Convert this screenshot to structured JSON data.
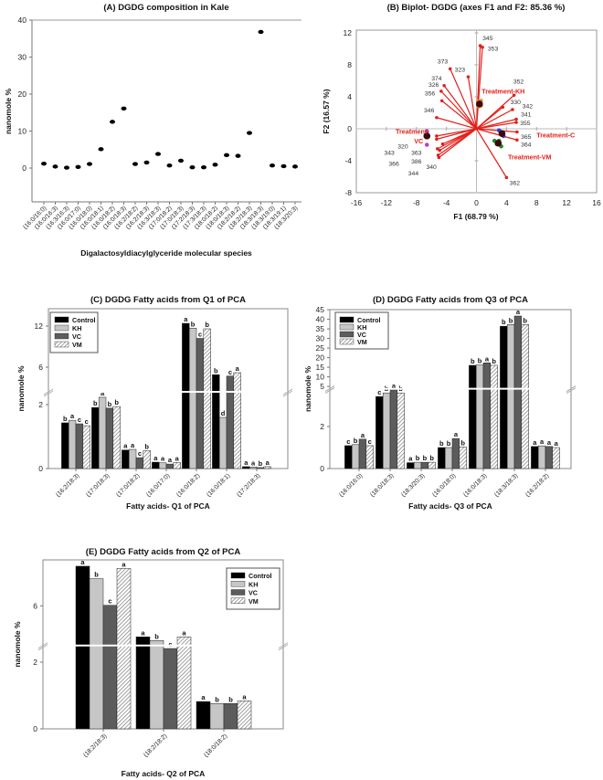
{
  "chart_data": [
    {
      "type": "scatter",
      "title": "(A) DGDG composition in Kale",
      "xlabel": "Digalactosyldiacylglyceride molecular species",
      "ylabel": "nanomole %",
      "ylim": [
        -9,
        40
      ],
      "yticks": [
        "0",
        "10",
        "20",
        "30",
        "40"
      ],
      "categories": [
        "(16:0/16:0)",
        "(16:0/16:3)",
        "(16:3/16:3)",
        "(16:0/17:0)",
        "(16:0/18:0)",
        "(16:0/18:1)",
        "(16:0/18:2)",
        "(16:0/18:3)",
        "(16:2/18:2)",
        "(16:2/18:3)",
        "(16:3/18:3)",
        "(17:0/18:2)",
        "(17:0/18:3)",
        "(17:2/18:3)",
        "(17:3/18:3)",
        "(18:0/18:2)",
        "(18:0/18:3)",
        "(18:2/18:2)",
        "(18:2/18:3)",
        "(18:3/18:3)",
        "(18:3/19:0)",
        "(18:3/19:1)",
        "(18:3/20:3)"
      ],
      "values": [
        1.2,
        0.4,
        0.1,
        0.3,
        1.1,
        5.1,
        12.5,
        16.1,
        1.1,
        1.5,
        3.8,
        0.7,
        2.0,
        0.2,
        0.2,
        0.9,
        3.5,
        3.3,
        9.5,
        36.8,
        0.7,
        0.5,
        0.4
      ]
    },
    {
      "type": "scatter",
      "subtype": "biplot",
      "title": "(B) Biplot- DGDG (axes F1 and F2: 85.36 %)",
      "xlabel": "F1 (68.79 %)",
      "ylabel": "F2 (16.57 %)",
      "xlim": [
        -16,
        16
      ],
      "ylim": [
        -8,
        12.3
      ],
      "xticks": [
        "-16",
        "-12",
        "-8",
        "-4",
        "0",
        "4",
        "8",
        "12",
        "16"
      ],
      "yticks": [
        "-8",
        "-4",
        "0",
        "4",
        "8",
        "12"
      ],
      "vectors": [
        {
          "label": "345",
          "x": 0.5,
          "y": 10.4
        },
        {
          "label": "353",
          "x": 0.8,
          "y": 10.2
        },
        {
          "label": "373",
          "x": -3.5,
          "y": 7.5
        },
        {
          "label": "323",
          "x": -1.1,
          "y": 6.5
        },
        {
          "label": "374",
          "x": -4.3,
          "y": 5.4
        },
        {
          "label": "326",
          "x": -4.7,
          "y": 4.7
        },
        {
          "label": "356",
          "x": -4.6,
          "y": 3.5
        },
        {
          "label": "346",
          "x": -5.3,
          "y": 1.4
        },
        {
          "label": "352",
          "x": 5.0,
          "y": 4.2
        },
        {
          "label": "330",
          "x": 3.5,
          "y": 2.7
        },
        {
          "label": "342",
          "x": 4.8,
          "y": 2.4
        },
        {
          "label": "341",
          "x": 5.3,
          "y": 1.2
        },
        {
          "label": "355",
          "x": 5.3,
          "y": 0.8
        },
        {
          "label": "365",
          "x": 5.4,
          "y": -0.4
        },
        {
          "label": "364",
          "x": 5.4,
          "y": -1.4
        },
        {
          "label": "362",
          "x": 4.0,
          "y": -6.1
        },
        {
          "label": "343",
          "x": -5.3,
          "y": -0.9
        },
        {
          "label": "366",
          "x": -5.3,
          "y": -1.3
        },
        {
          "label": "320",
          "x": -4.5,
          "y": -1.9
        },
        {
          "label": "363",
          "x": -5.2,
          "y": -2.5
        },
        {
          "label": "386",
          "x": -4.9,
          "y": -2.7
        },
        {
          "label": "344",
          "x": -5.1,
          "y": -3.3
        },
        {
          "label": "340",
          "x": -5.0,
          "y": -3.6
        }
      ],
      "treatments": [
        {
          "label_lines": [
            "Treatment-KH"
          ],
          "color": "#f28c28",
          "centroid": [
            0.4,
            3.1
          ],
          "points": [
            [
              0.2,
              3.4
            ],
            [
              0.6,
              3.5
            ],
            [
              0.3,
              2.8
            ],
            [
              0.6,
              2.9
            ]
          ]
        },
        {
          "label_lines": [
            "Treatment-C"
          ],
          "color": "#2a3fd6",
          "centroid": [
            3.4,
            -0.6
          ],
          "points": [
            [
              3.0,
              -0.2
            ],
            [
              3.6,
              -0.9
            ],
            [
              3.3,
              -0.4
            ]
          ]
        },
        {
          "label_lines": [
            "Treatment-VM"
          ],
          "color": "#1f8a2a",
          "centroid": [
            2.9,
            -1.8
          ],
          "points": [
            [
              2.4,
              -1.5
            ],
            [
              2.7,
              -1.9
            ],
            [
              3.3,
              -2.2
            ],
            [
              3.0,
              -1.5
            ]
          ]
        },
        {
          "label_lines": [
            "Treatment-",
            "VC"
          ],
          "color": "#c040c0",
          "centroid": [
            -6.6,
            -0.9
          ],
          "points": [
            [
              -6.6,
              -0.3
            ],
            [
              -6.6,
              -2.0
            ],
            [
              -6.7,
              -0.8
            ]
          ]
        }
      ],
      "centroid_color": "#3a0a0a",
      "vector_color": "#e3201b"
    },
    {
      "type": "bar",
      "title": "(C) DGDG Fatty acids from Q1 of PCA",
      "xlabel": "Fatty acids- Q1 of PCA",
      "ylabel": "nanomole %",
      "axis_break": true,
      "ylim_lower": [
        0,
        2.4
      ],
      "ylim_upper": [
        2.4,
        14.5
      ],
      "yticks_lower": [
        "0",
        "2"
      ],
      "yticks_upper": [
        "6",
        "12"
      ],
      "legend_position": "top-left",
      "categories": [
        "(16:2/18:3)",
        "(17:0/18:3)",
        "(17:0/18:2)",
        "(16:0/17:0)",
        "(16:0/18:2)",
        "(16:0/18:1)",
        "(17:2/18:3)"
      ],
      "series": [
        {
          "name": "Control",
          "values": [
            1.43,
            1.91,
            0.58,
            0.2,
            12.4,
            4.9,
            0.06
          ],
          "letters": [
            "b",
            "b",
            "a",
            "a",
            "a",
            "b",
            "a"
          ]
        },
        {
          "name": "KH",
          "values": [
            1.51,
            2.23,
            0.6,
            0.18,
            11.7,
            1.6,
            0.05
          ],
          "letters": [
            "a",
            "a",
            "a",
            "a",
            "b",
            "d",
            "a"
          ]
        },
        {
          "name": "VC",
          "values": [
            1.4,
            1.89,
            0.34,
            0.14,
            10.2,
            4.7,
            0.03
          ],
          "letters": [
            "c",
            "b",
            "c",
            "a",
            "c",
            "c",
            "b"
          ]
        },
        {
          "name": "VM",
          "values": [
            1.34,
            1.94,
            0.56,
            0.19,
            11.6,
            5.2,
            0.06
          ],
          "letters": [
            "c",
            "b",
            "b",
            "a",
            "b",
            "a",
            "a"
          ]
        }
      ]
    },
    {
      "type": "bar",
      "title": "(D) DGDG Fatty acids from Q3 of PCA",
      "xlabel": "Fatty acids- Q3 of PCA",
      "ylabel": "nanomole %",
      "axis_break": true,
      "ylim_lower": [
        0,
        3.8
      ],
      "ylim_upper": [
        3.8,
        45
      ],
      "yticks_lower": [
        "0",
        "2"
      ],
      "yticks_upper": [
        "5",
        "10",
        "15",
        "20",
        "25",
        "30",
        "35",
        "40",
        "45"
      ],
      "legend_position": "top-left",
      "categories": [
        "(16:0/16:0)",
        "(18:0/18:3)",
        "(18:3/20:3)",
        "(16:0/18:0)",
        "(16:0/18:3)",
        "(18:3/18:3)",
        "(16:2/18:2)"
      ],
      "series": [
        {
          "name": "Control",
          "values": [
            1.09,
            3.43,
            0.28,
            1.0,
            16.0,
            36.4,
            1.05
          ],
          "letters": [
            "c",
            "c",
            "a",
            "b",
            "b",
            "b",
            "a"
          ]
        },
        {
          "name": "KH",
          "values": [
            1.14,
            3.6,
            0.3,
            1.0,
            16.2,
            37.3,
            1.08
          ],
          "letters": [
            "b",
            "b",
            "b",
            "b",
            "b",
            "b",
            "a"
          ]
        },
        {
          "name": "VC",
          "values": [
            1.4,
            3.74,
            0.3,
            1.43,
            17.3,
            41.7,
            1.05
          ],
          "letters": [
            "a",
            "a",
            "b",
            "a",
            "a",
            "a",
            "a"
          ]
        },
        {
          "name": "VM",
          "values": [
            1.09,
            3.6,
            0.3,
            1.03,
            16.0,
            37.3,
            1.0
          ],
          "letters": [
            "c",
            "b",
            "b",
            "b",
            "b",
            "b",
            "a"
          ]
        }
      ]
    },
    {
      "type": "bar",
      "title": "(E) DGDG Fatty acids from Q2 of PCA",
      "xlabel": "Fatty acids- Q2 of PCA",
      "ylabel": "nanomole %",
      "axis_break": true,
      "ylim_lower": [
        0,
        2.5
      ],
      "ylim_upper": [
        2.5,
        10
      ],
      "yticks_lower": [
        "0",
        "2"
      ],
      "yticks_upper": [
        "6"
      ],
      "legend_position": "top-right",
      "categories": [
        "(18:2/18:3)",
        "(18:2/18:2)",
        "(18:0/18:2)"
      ],
      "series": [
        {
          "name": "Control",
          "values": [
            9.5,
            3.26,
            0.82
          ],
          "letters": [
            "a",
            "a",
            "a"
          ]
        },
        {
          "name": "KH",
          "values": [
            8.4,
            2.94,
            0.76
          ],
          "letters": [
            "b",
            "b",
            "b"
          ]
        },
        {
          "name": "VC",
          "values": [
            6.05,
            2.41,
            0.76
          ],
          "letters": [
            "c",
            "c",
            "b"
          ]
        },
        {
          "name": "VM",
          "values": [
            9.3,
            3.26,
            0.84
          ],
          "letters": [
            "a",
            "a",
            "a"
          ]
        }
      ]
    }
  ],
  "series_colors": {
    "Control": "#000000",
    "KH": "#c6c6c6",
    "VC": "#5c5c5c",
    "VM": "hatched"
  }
}
